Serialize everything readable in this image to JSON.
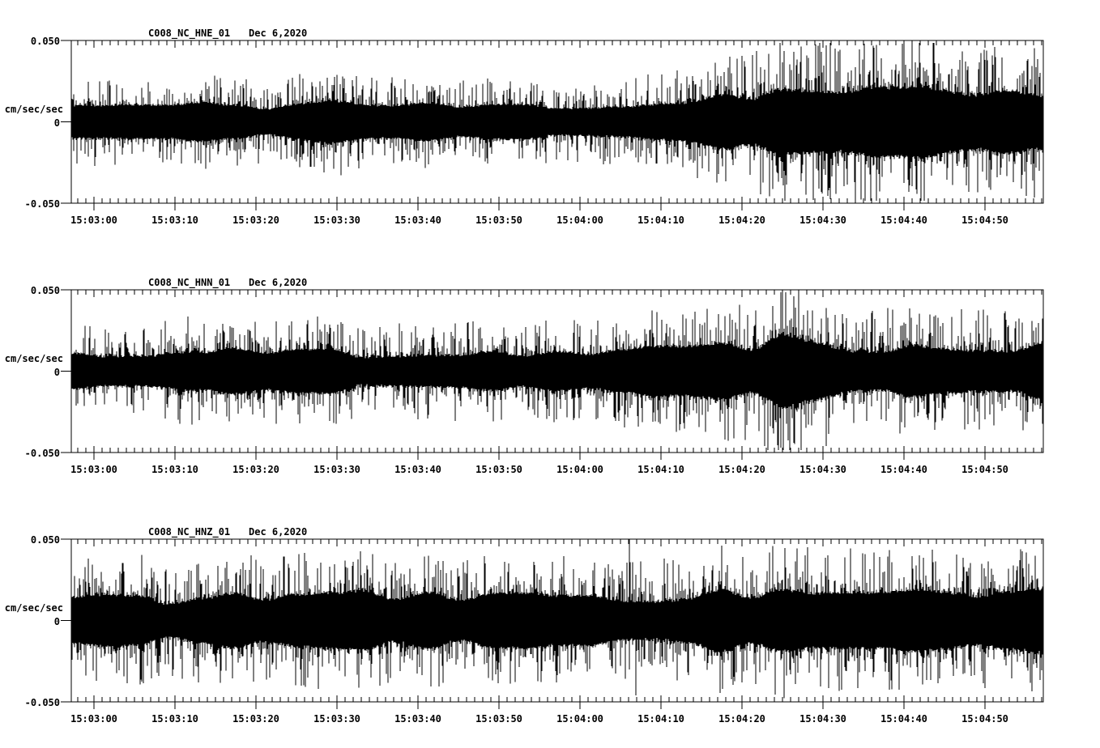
{
  "figure": {
    "background": "#ffffff",
    "description": "Three-channel strong-motion seismogram display, station C008, network NC, Dec 6 2020, 15:02:57 to 15:04:57"
  },
  "chart_data": {
    "type": "line",
    "kind": "seismic-waveform",
    "title": "C008 NC 3-component acceleration traces",
    "xlabel": "",
    "ylabel": "cm/sec/sec",
    "ylim": [
      -0.05,
      0.05
    ],
    "y_tick_labels": [
      "0.050",
      "0",
      "-0.050"
    ],
    "x_start": "15:02:57",
    "x_end": "15:04:57",
    "x_span_seconds": 120,
    "x_minor_tick_seconds": 1,
    "x_major_tick_seconds": 10,
    "grid": false,
    "legend": "none",
    "x_tick_labels": [
      "15:03:00",
      "15:03:10",
      "15:03:20",
      "15:03:30",
      "15:03:40",
      "15:03:50",
      "15:04:00",
      "15:04:10",
      "15:04:20",
      "15:04:30",
      "15:04:40",
      "15:04:50"
    ],
    "colors": {
      "trace": "#000000",
      "axis": "#000000",
      "background": "#ffffff",
      "text": "#000000"
    },
    "series": [
      {
        "name": "C008_NC_HNE_01",
        "title": "C008_NC_HNE_01",
        "date": "Dec 6,2020",
        "seed": 11,
        "envelope": [
          [
            0,
            0.022
          ],
          [
            14,
            0.022
          ],
          [
            27,
            0.023
          ],
          [
            32,
            0.028
          ],
          [
            37,
            0.023
          ],
          [
            48,
            0.021
          ],
          [
            60,
            0.022
          ],
          [
            70,
            0.024
          ],
          [
            76,
            0.028
          ],
          [
            82,
            0.038
          ],
          [
            87,
            0.043
          ],
          [
            92,
            0.04
          ],
          [
            97,
            0.043
          ],
          [
            101,
            0.039
          ],
          [
            105,
            0.042
          ],
          [
            109,
            0.036
          ],
          [
            113,
            0.043
          ],
          [
            117,
            0.039
          ],
          [
            120,
            0.042
          ]
        ],
        "spikes": [
          {
            "t": 88.0,
            "top": 0.0435,
            "bottom": -0.03
          },
          {
            "t": 92.6,
            "top": 0.043,
            "bottom": -0.043
          }
        ]
      },
      {
        "name": "C008_NC_HNN_01",
        "title": "C008_NC_HNN_01",
        "date": "Dec 6,2020",
        "seed": 22,
        "envelope": [
          [
            0,
            0.023
          ],
          [
            9,
            0.024
          ],
          [
            14,
            0.03
          ],
          [
            19,
            0.025
          ],
          [
            28,
            0.027
          ],
          [
            38,
            0.026
          ],
          [
            48,
            0.027
          ],
          [
            58,
            0.026
          ],
          [
            67,
            0.028
          ],
          [
            74,
            0.03
          ],
          [
            80,
            0.033
          ],
          [
            85,
            0.04
          ],
          [
            88,
            0.046
          ],
          [
            91,
            0.042
          ],
          [
            95,
            0.039
          ],
          [
            99,
            0.036
          ],
          [
            104,
            0.033
          ],
          [
            108,
            0.03
          ],
          [
            112,
            0.035
          ],
          [
            116,
            0.031
          ],
          [
            120,
            0.033
          ]
        ],
        "spikes": [
          {
            "t": 87.6,
            "top": 0.04,
            "bottom": -0.047
          },
          {
            "t": 89.2,
            "top": 0.046,
            "bottom": -0.044
          }
        ]
      },
      {
        "name": "C008_NC_HNZ_01",
        "title": "C008_NC_HNZ_01",
        "date": "Dec 6,2020",
        "seed": 33,
        "envelope": [
          [
            0,
            0.03
          ],
          [
            8,
            0.032
          ],
          [
            18,
            0.031
          ],
          [
            28,
            0.034
          ],
          [
            34,
            0.032
          ],
          [
            44,
            0.033
          ],
          [
            54,
            0.031
          ],
          [
            61,
            0.032
          ],
          [
            68,
            0.034
          ],
          [
            74,
            0.033
          ],
          [
            81,
            0.036
          ],
          [
            86,
            0.038
          ],
          [
            91,
            0.036
          ],
          [
            96,
            0.037
          ],
          [
            101,
            0.035
          ],
          [
            106,
            0.036
          ],
          [
            111,
            0.034
          ],
          [
            116,
            0.036
          ],
          [
            120,
            0.035
          ]
        ],
        "spikes": [
          {
            "t": 68.9,
            "top": 0.05,
            "bottom": -0.03
          },
          {
            "t": 69.7,
            "top": 0.028,
            "bottom": -0.046
          }
        ]
      }
    ]
  }
}
